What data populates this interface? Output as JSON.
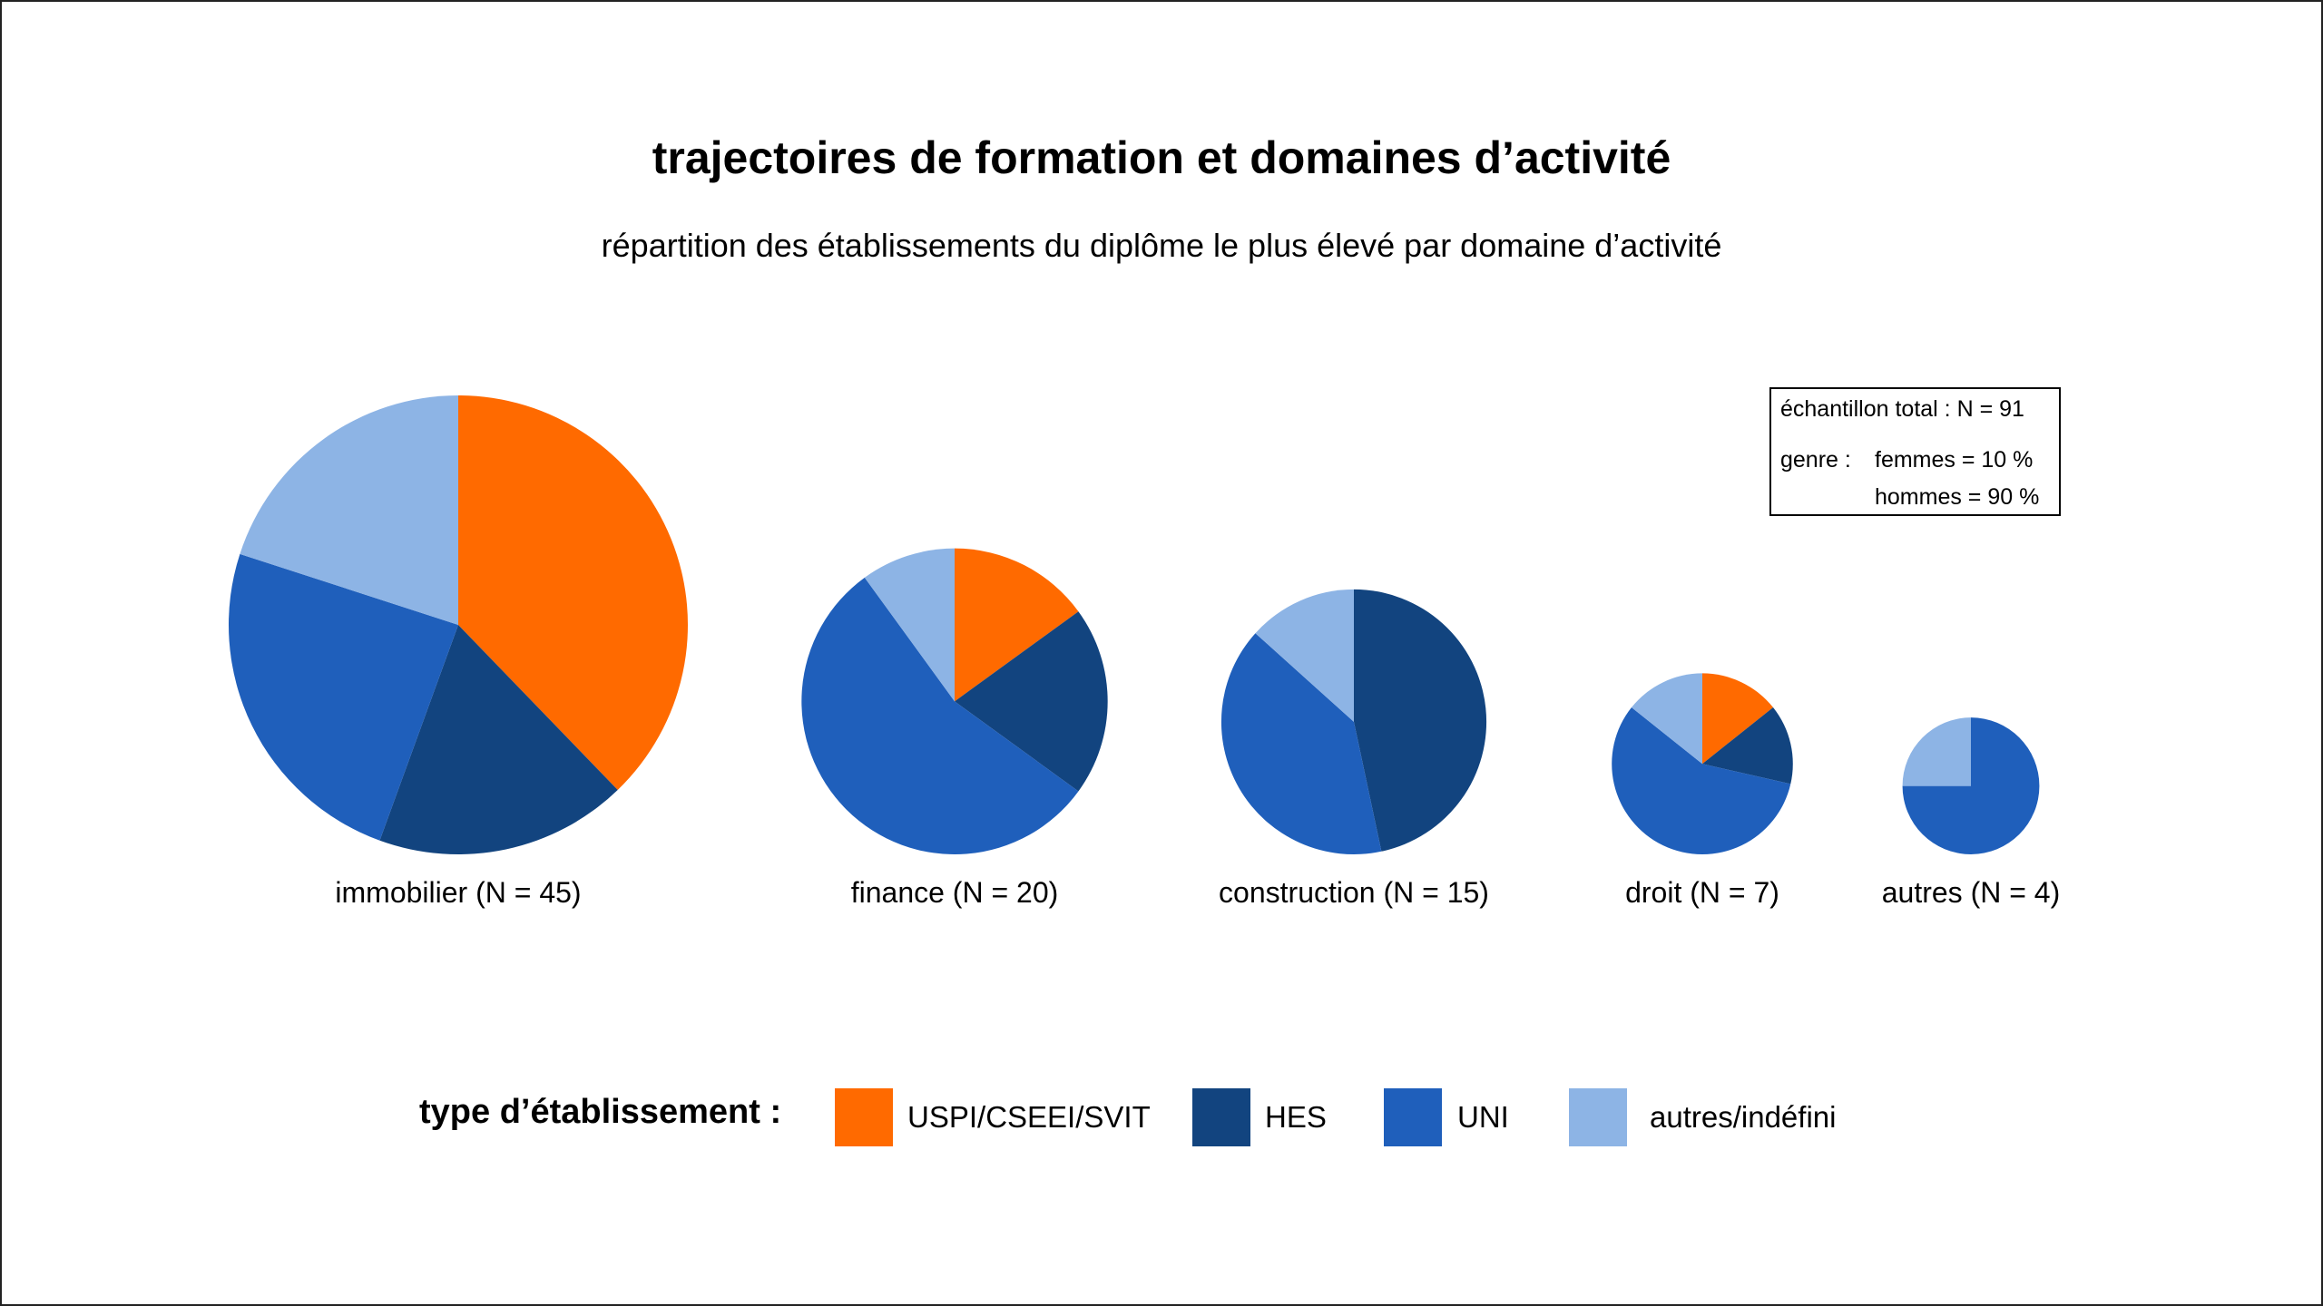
{
  "title": "trajectoires de formation et domaines d’activité",
  "subtitle": "répartition des établissements du diplôme le plus élevé par domaine d’activité",
  "info": {
    "sample": "échantillon total : N = 91",
    "genre_label": "genre :",
    "women": "femmes = 10 %",
    "men": "hommes = 90 %"
  },
  "legend": {
    "title": "type d’établissement :",
    "items": [
      {
        "label": "USPI/CSEEI/SVIT",
        "color": "#ff6a00"
      },
      {
        "label": "HES",
        "color": "#12447f"
      },
      {
        "label": "UNI",
        "color": "#1f5fbb"
      },
      {
        "label": "autres/indéfini",
        "color": "#8db4e5"
      }
    ]
  },
  "chart_data": {
    "type": "pie",
    "series_names": [
      "USPI/CSEEI/SVIT",
      "HES",
      "UNI",
      "autres/indéfini"
    ],
    "colors": [
      "#ff6a00",
      "#12447f",
      "#1f5fbb",
      "#8db4e5"
    ],
    "pies": [
      {
        "label": "immobilier (N = 45)",
        "n": 45,
        "values": [
          17,
          8,
          11,
          9
        ]
      },
      {
        "label": "finance (N = 20)",
        "n": 20,
        "values": [
          3,
          4,
          11,
          2
        ]
      },
      {
        "label": "construction (N = 15)",
        "n": 15,
        "values": [
          0,
          7,
          6,
          2
        ]
      },
      {
        "label": "droit (N = 7)",
        "n": 7,
        "values": [
          1,
          1,
          4,
          1
        ]
      },
      {
        "label": "autres (N = 4)",
        "n": 4,
        "values": [
          0,
          0,
          3,
          1
        ]
      }
    ]
  }
}
